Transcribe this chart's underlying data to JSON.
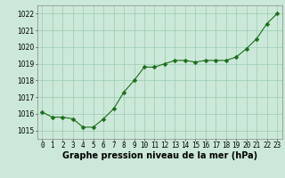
{
  "x": [
    0,
    1,
    2,
    3,
    4,
    5,
    6,
    7,
    8,
    9,
    10,
    11,
    12,
    13,
    14,
    15,
    16,
    17,
    18,
    19,
    20,
    21,
    22,
    23
  ],
  "y": [
    1016.1,
    1015.8,
    1015.8,
    1015.7,
    1015.2,
    1015.2,
    1015.7,
    1016.3,
    1017.3,
    1018.0,
    1018.8,
    1018.8,
    1019.0,
    1019.2,
    1019.2,
    1019.1,
    1019.2,
    1019.2,
    1019.2,
    1019.4,
    1019.9,
    1020.5,
    1021.4,
    1022.0
  ],
  "ylim": [
    1014.5,
    1022.5
  ],
  "yticks": [
    1015,
    1016,
    1017,
    1018,
    1019,
    1020,
    1021,
    1022
  ],
  "xticks": [
    0,
    1,
    2,
    3,
    4,
    5,
    6,
    7,
    8,
    9,
    10,
    11,
    12,
    13,
    14,
    15,
    16,
    17,
    18,
    19,
    20,
    21,
    22,
    23
  ],
  "line_color": "#1a6e1a",
  "marker_color": "#1a6e1a",
  "bg_color": "#cce8d8",
  "grid_color": "#99ccb3",
  "xlabel": "Graphe pression niveau de la mer (hPa)",
  "xlabel_fontsize": 7,
  "tick_fontsize": 5.5,
  "marker_size": 2.5,
  "line_width": 0.8
}
